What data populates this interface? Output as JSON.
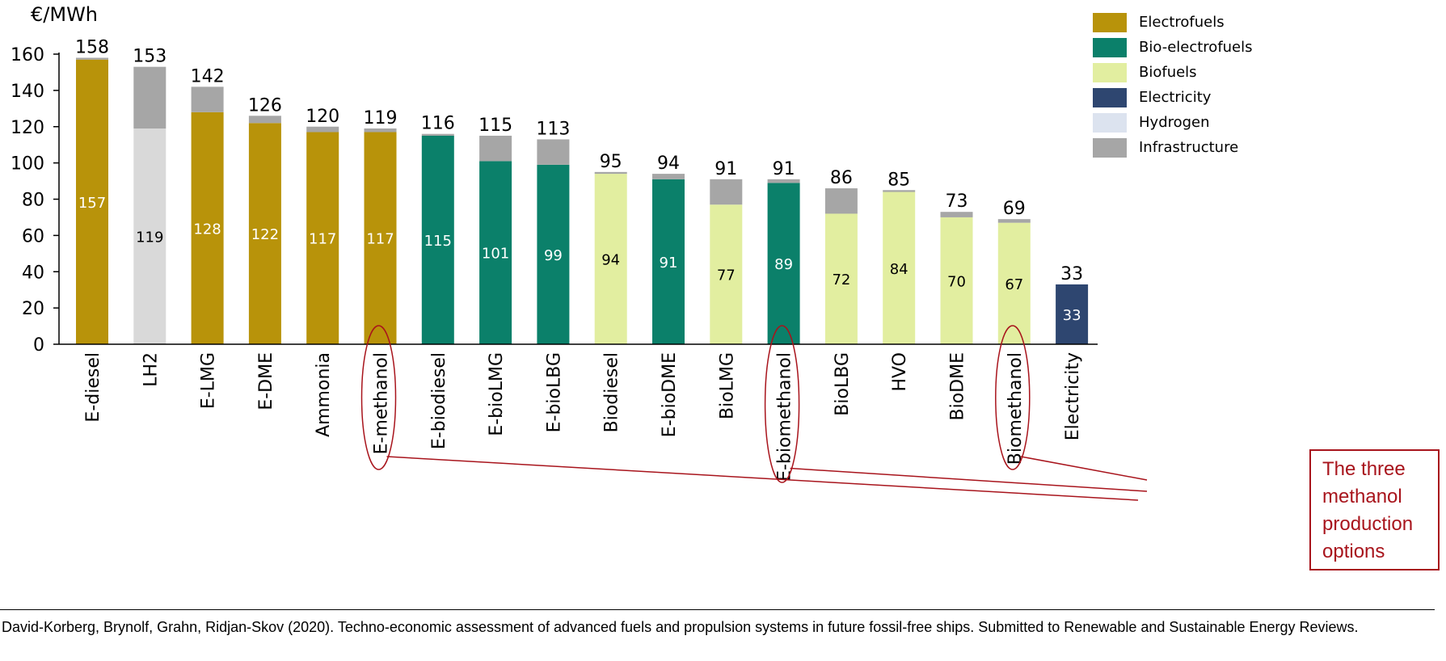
{
  "chart_data": {
    "type": "bar",
    "stacked": true,
    "ylabel": "€/MWh",
    "ylim": [
      0,
      160
    ],
    "yticks": [
      0,
      20,
      40,
      60,
      80,
      100,
      120,
      140,
      160
    ],
    "grid": false,
    "legend_position": "top-right",
    "categories": [
      "E-diesel",
      "LH2",
      "E-LMG",
      "E-DME",
      "Ammonia",
      "E-methanol",
      "E-biodiesel",
      "E-bioLMG",
      "E-bioLBG",
      "Biodiesel",
      "E-bioDME",
      "BioLMG",
      "E-biomethanol",
      "BioLBG",
      "HVO",
      "BioDME",
      "Biomethanol",
      "Electricity"
    ],
    "base_values": [
      157,
      119,
      128,
      122,
      117,
      117,
      115,
      101,
      99,
      94,
      91,
      77,
      89,
      72,
      84,
      70,
      67,
      33
    ],
    "base_types": [
      "Electrofuels",
      "Hydrogen",
      "Electrofuels",
      "Electrofuels",
      "Electrofuels",
      "Electrofuels",
      "Bio-electrofuels",
      "Bio-electrofuels",
      "Bio-electrofuels",
      "Biofuels",
      "Bio-electrofuels",
      "Biofuels",
      "Bio-electrofuels",
      "Biofuels",
      "Biofuels",
      "Biofuels",
      "Biofuels",
      "Electricity"
    ],
    "totals": [
      158,
      153,
      142,
      126,
      120,
      119,
      116,
      115,
      113,
      95,
      94,
      91,
      91,
      86,
      85,
      73,
      69,
      33
    ],
    "series": [
      {
        "name": "Electrofuels",
        "color": "#b8930a"
      },
      {
        "name": "Bio-electrofuels",
        "color": "#0b806a"
      },
      {
        "name": "Biofuels",
        "color": "#e2eea0"
      },
      {
        "name": "Electricity",
        "color": "#2e4670"
      },
      {
        "name": "Hydrogen",
        "color": "#d9d9d9"
      },
      {
        "name": "Infrastructure",
        "color": "#a6a6a6"
      }
    ],
    "legend_swatch_hydrogen": "#dce3ef",
    "highlighted": [
      "E-methanol",
      "E-biomethanol",
      "Biomethanol"
    ]
  },
  "annotation": {
    "lines": [
      "The three",
      "methanol",
      "production",
      "options"
    ],
    "color": "#a8141c"
  },
  "citation": "David-Korberg, Brynolf, Grahn, Ridjan-Skov (2020). Techno-economic assessment of advanced fuels and propulsion systems in future fossil-free ships. Submitted to Renewable and Sustainable Energy Reviews."
}
